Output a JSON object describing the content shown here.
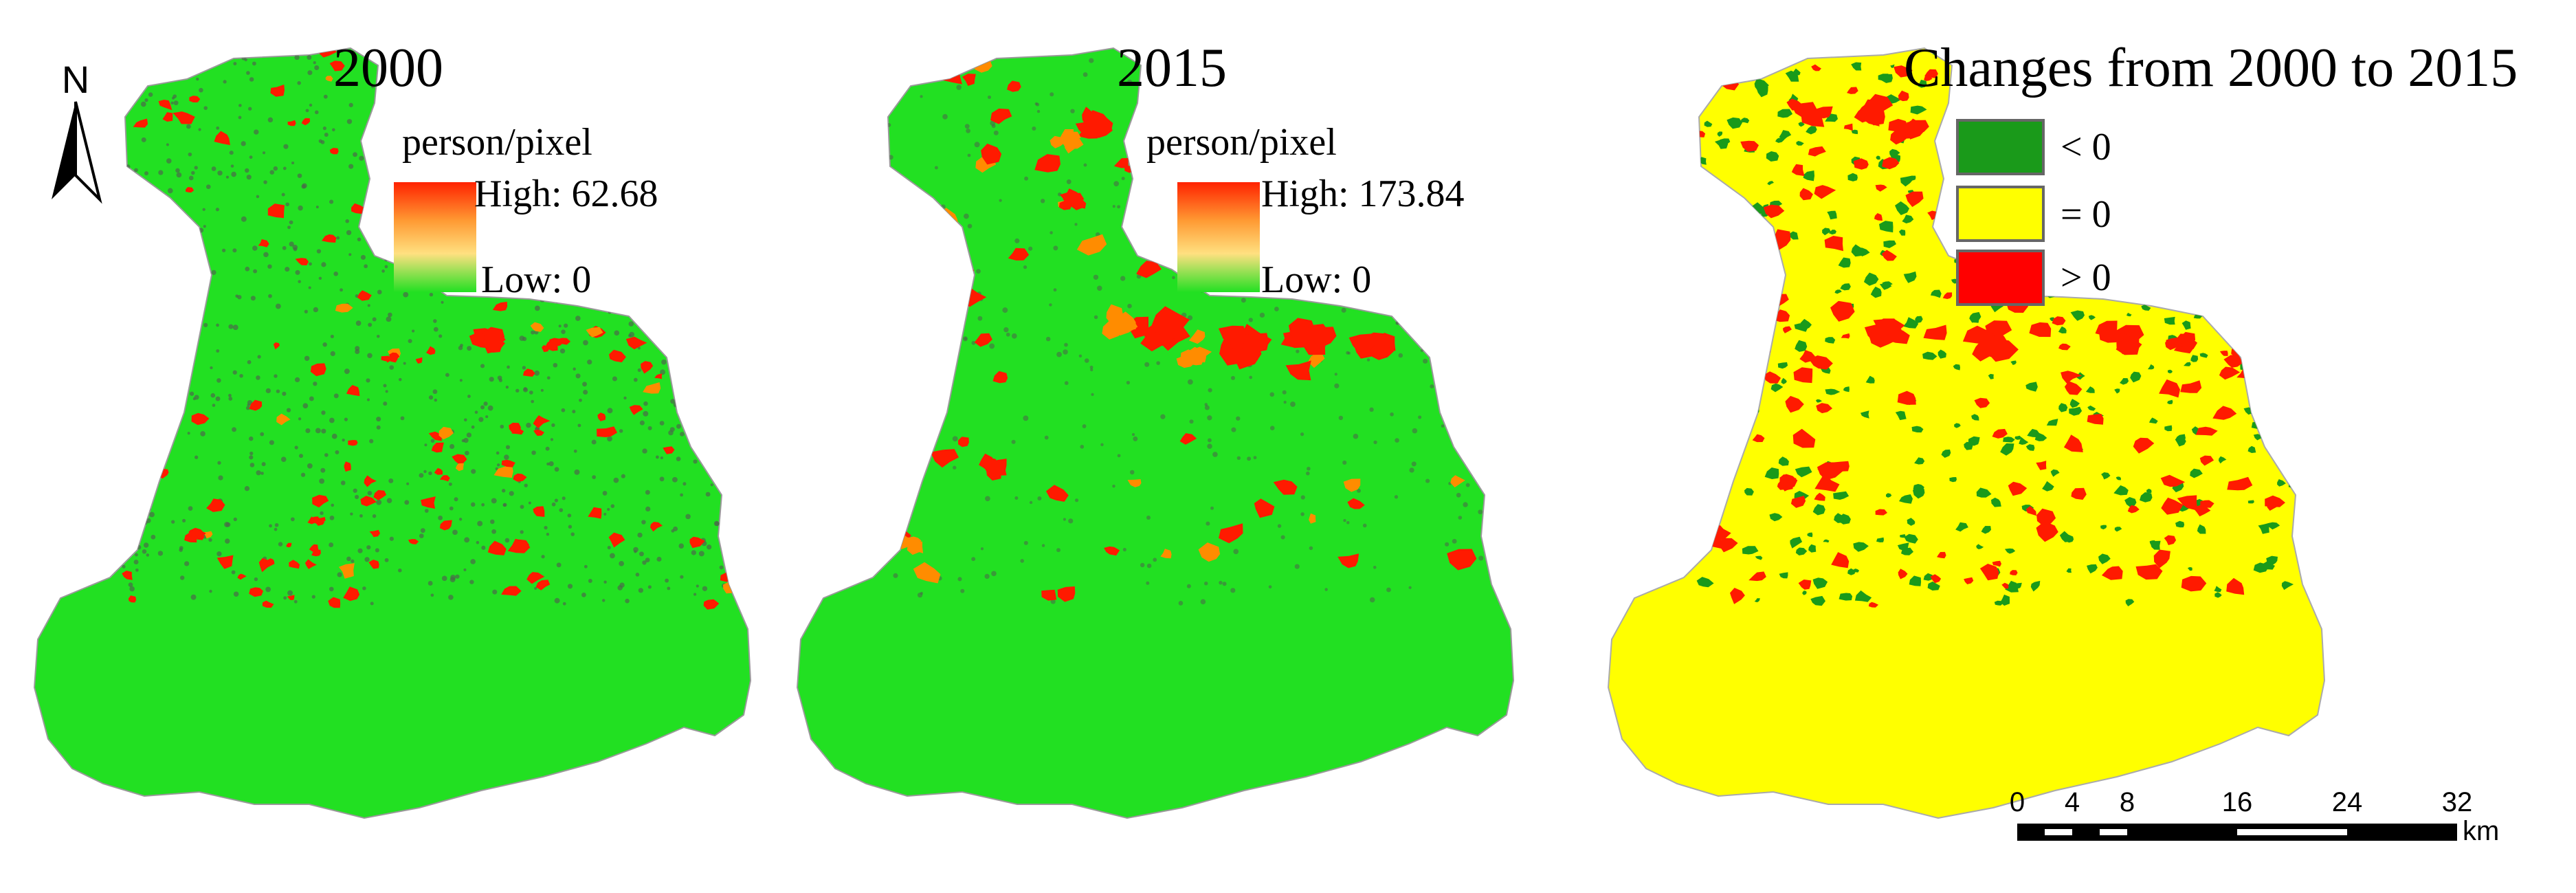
{
  "panels": [
    {
      "id": "y2000",
      "title": "2000",
      "legend_title": "person/pixel",
      "high_label": "High: 62.68",
      "low_label": "Low: 0"
    },
    {
      "id": "y2015",
      "title": "2015",
      "legend_title": "person/pixel",
      "high_label": "High: 173.84",
      "low_label": "Low: 0"
    },
    {
      "id": "change",
      "title": "Changes from 2000 to 2015",
      "legend": [
        {
          "label": "< 0",
          "color": "#1a9a1a"
        },
        {
          "label": "= 0",
          "color": "#ffff00"
        },
        {
          "label": "> 0",
          "color": "#ff0000"
        }
      ]
    }
  ],
  "north_arrow": {
    "label": "N"
  },
  "scale_bar": {
    "ticks": [
      "0",
      "4",
      "8",
      "16",
      "24",
      "32"
    ],
    "tick_values": [
      0,
      4,
      8,
      16,
      24,
      32
    ],
    "unit": "km"
  },
  "colors": {
    "map_green": "#22e022",
    "map_yellow": "#ffff00",
    "red": "#ff1a00",
    "orange": "#ff8c00",
    "dark_green": "#1a9a1a"
  }
}
